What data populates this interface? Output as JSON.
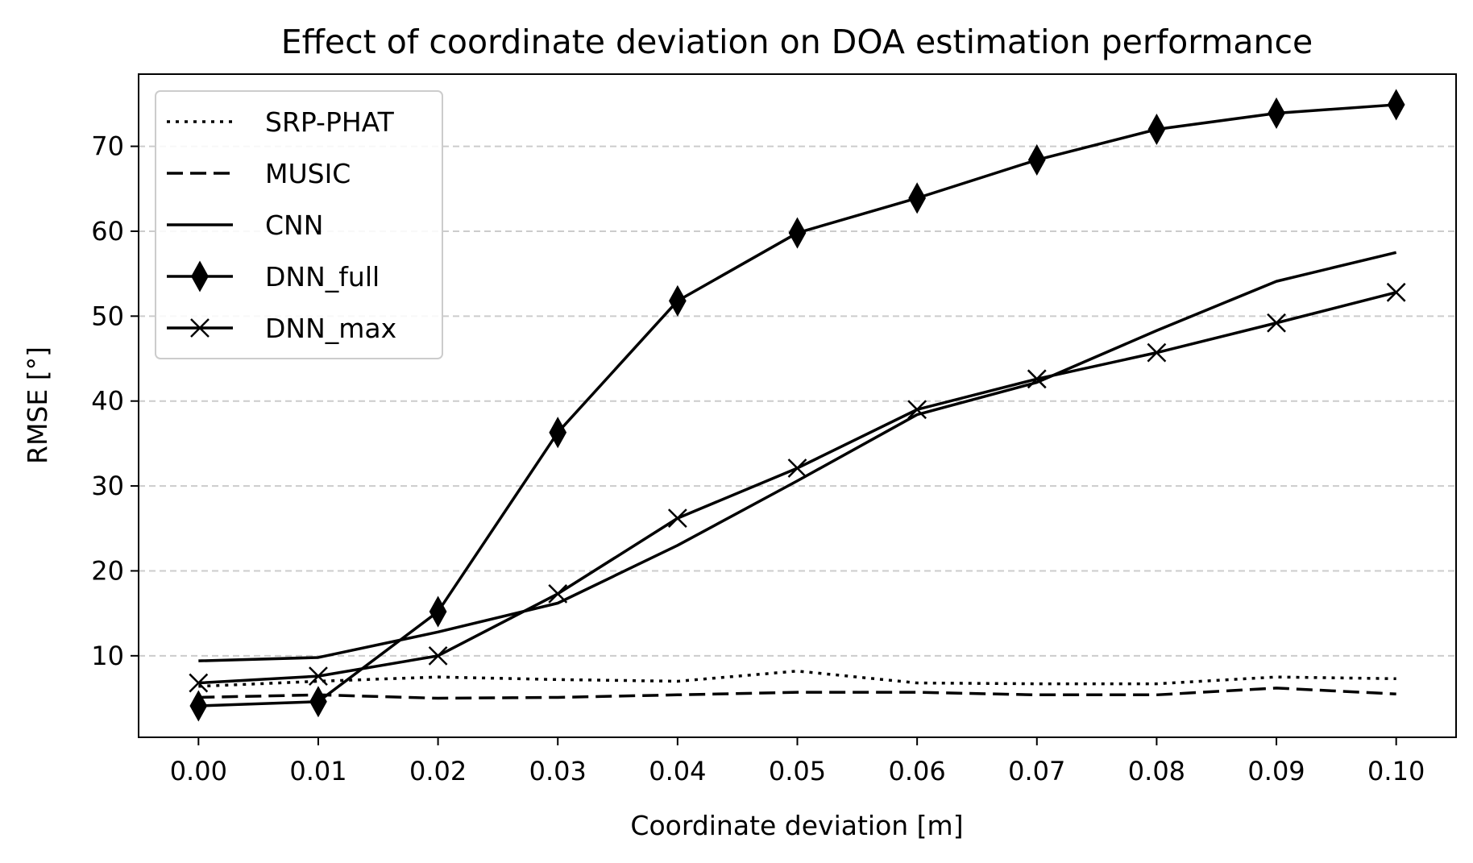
{
  "chart_data": {
    "type": "line",
    "title": "Effect of coordinate deviation on DOA estimation performance",
    "xlabel": "Coordinate deviation [m]",
    "ylabel": "RMSE [°]",
    "x": [
      0.0,
      0.01,
      0.02,
      0.03,
      0.04,
      0.05,
      0.06,
      0.07,
      0.08,
      0.09,
      0.1
    ],
    "x_tick_labels": [
      "0.00",
      "0.01",
      "0.02",
      "0.03",
      "0.04",
      "0.05",
      "0.06",
      "0.07",
      "0.08",
      "0.09",
      "0.10"
    ],
    "xlim": [
      -0.005,
      0.105
    ],
    "y_ticks": [
      10,
      20,
      30,
      40,
      50,
      60,
      70
    ],
    "y_tick_labels": [
      "10",
      "20",
      "30",
      "40",
      "50",
      "60",
      "70"
    ],
    "ylim": [
      0.4,
      78.5
    ],
    "grid": "y-dashed",
    "legend_position": "top-left",
    "series": [
      {
        "name": "SRP-PHAT",
        "style": "dotted",
        "marker": "none",
        "values": [
          6.4,
          7.0,
          7.5,
          7.2,
          7.0,
          8.2,
          6.8,
          6.7,
          6.7,
          7.5,
          7.3
        ]
      },
      {
        "name": "MUSIC",
        "style": "dashed",
        "marker": "none",
        "values": [
          5.1,
          5.4,
          5.0,
          5.1,
          5.4,
          5.7,
          5.7,
          5.4,
          5.4,
          6.2,
          5.5
        ]
      },
      {
        "name": "CNN",
        "style": "solid",
        "marker": "none",
        "values": [
          9.4,
          9.8,
          12.8,
          16.2,
          23.0,
          30.6,
          38.4,
          42.2,
          48.3,
          54.1,
          57.5
        ]
      },
      {
        "name": "DNN_full",
        "style": "solid",
        "marker": "diamond",
        "values": [
          4.1,
          4.6,
          15.2,
          36.3,
          51.8,
          59.8,
          63.9,
          68.4,
          72.0,
          73.9,
          74.9
        ]
      },
      {
        "name": "DNN_max",
        "style": "solid",
        "marker": "x",
        "values": [
          6.8,
          7.6,
          10.0,
          17.3,
          26.2,
          32.1,
          39.0,
          42.6,
          45.7,
          49.2,
          52.8
        ]
      }
    ],
    "colors": {
      "line": "#000000",
      "grid": "#cccccc",
      "background": "#ffffff"
    }
  }
}
